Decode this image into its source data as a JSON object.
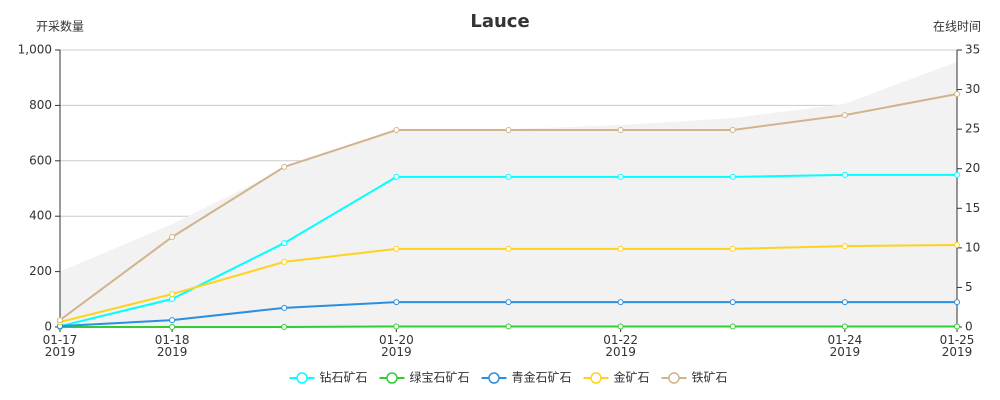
{
  "chart_data": {
    "type": "line",
    "title": "Lauce",
    "y_axis_label": "开采数量",
    "y2_axis_label": "在线时间",
    "x": [
      "2019-01-17",
      "2019-01-18",
      "2019-01-19",
      "2019-01-20",
      "2019-01-21",
      "2019-01-22",
      "2019-01-23",
      "2019-01-24",
      "2019-01-25"
    ],
    "xlim": [
      "2019-01-17",
      "2019-01-25"
    ],
    "xticks": [
      {
        "value": "2019-01-17",
        "label": "01-17\n2019"
      },
      {
        "value": "2019-01-18",
        "label": "01-18\n2019"
      },
      {
        "value": "2019-01-20",
        "label": "01-20\n2019"
      },
      {
        "value": "2019-01-22",
        "label": "01-22\n2019"
      },
      {
        "value": "2019-01-24",
        "label": "01-24\n2019"
      },
      {
        "value": "2019-01-25",
        "label": "01-25\n2019"
      }
    ],
    "ylim": [
      0,
      1000
    ],
    "yticks": [
      0,
      200,
      400,
      600,
      800,
      {
        "value": 1000,
        "label": "1,000"
      }
    ],
    "y2lim": [
      0,
      35
    ],
    "y2ticks": [
      0,
      5,
      10,
      15,
      20,
      25,
      30,
      35
    ],
    "grid": true,
    "legend": "bottom",
    "series": [
      {
        "color": "#f2f2f2",
        "axis": "y2",
        "area": true,
        "values": [
          7,
          13,
          20,
          25,
          25,
          25.5,
          26.4,
          28.2,
          33.5
        ]
      },
      {
        "name": "钻石矿石",
        "color": "#00ffff",
        "values": [
          3,
          101,
          303,
          542,
          542,
          542,
          542,
          549,
          549
        ]
      },
      {
        "name": "绿宝石矿石",
        "color": "#33cc33",
        "values": [
          0,
          0,
          0,
          2,
          2,
          2,
          2,
          2,
          2
        ]
      },
      {
        "name": "青金石矿石",
        "color": "#2b8fe0",
        "values": [
          3,
          25,
          69,
          90,
          90,
          90,
          90,
          90,
          90
        ]
      },
      {
        "name": "金矿石",
        "color": "#ffd21f",
        "values": [
          18,
          119,
          235,
          282,
          282,
          282,
          282,
          292,
          296
        ]
      },
      {
        "name": "铁矿石",
        "color": "#d2b48c",
        "values": [
          25,
          325,
          578,
          711,
          711,
          711,
          711,
          765,
          841
        ]
      }
    ]
  }
}
